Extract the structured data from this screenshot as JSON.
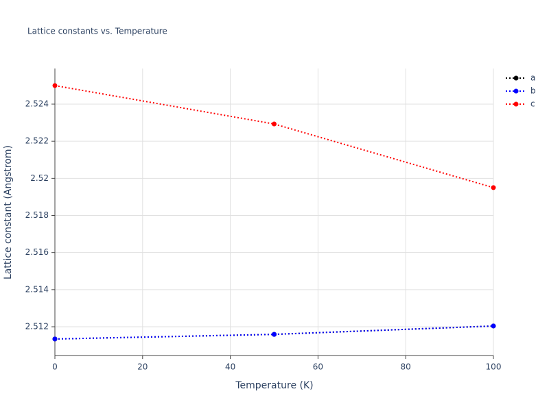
{
  "chart_data": {
    "type": "line",
    "title": "Lattice constants vs. Temperature",
    "x_label": "Temperature (K)",
    "y_label": "Lattice constant (Angstrom)",
    "x": [
      0,
      50,
      100
    ],
    "series": [
      {
        "name": "a",
        "color": "#000000",
        "values": [
          2.51134,
          2.51159,
          2.51204
        ]
      },
      {
        "name": "b",
        "color": "#0000ff",
        "values": [
          2.51134,
          2.51159,
          2.51204
        ]
      },
      {
        "name": "c",
        "color": "#ff0000",
        "values": [
          2.525,
          2.52293,
          2.5195
        ]
      }
    ],
    "xlim": [
      0,
      100
    ],
    "xticks": [
      0,
      20,
      40,
      60,
      80,
      100
    ],
    "ylim": [
      2.51045,
      2.52592
    ],
    "yticks": [
      2.512,
      2.514,
      2.516,
      2.518,
      2.52,
      2.522,
      2.524
    ],
    "grid": true,
    "legend": "top-right"
  }
}
